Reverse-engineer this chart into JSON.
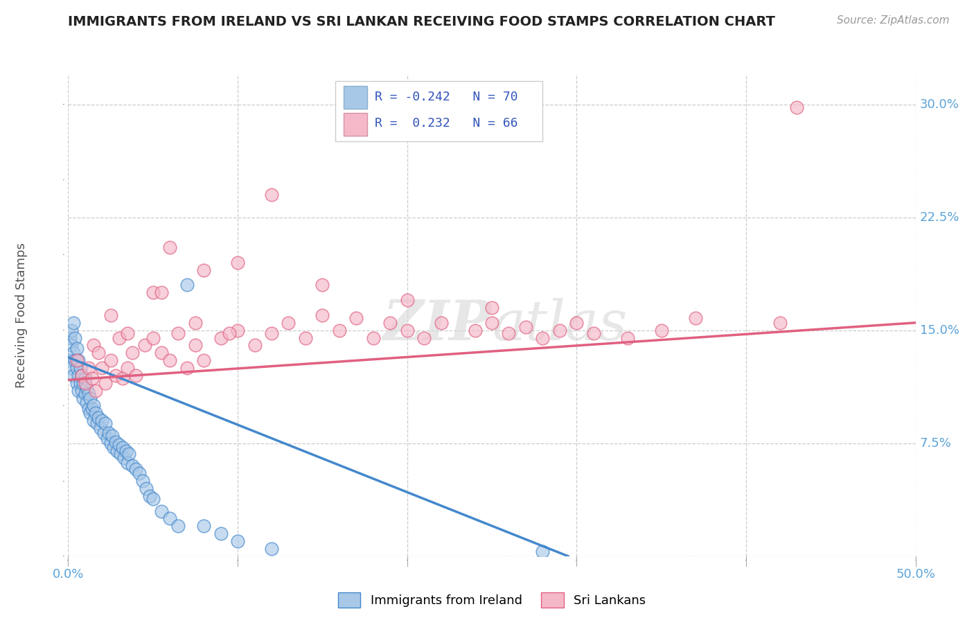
{
  "title": "IMMIGRANTS FROM IRELAND VS SRI LANKAN RECEIVING FOOD STAMPS CORRELATION CHART",
  "source": "Source: ZipAtlas.com",
  "ylabel": "Receiving Food Stamps",
  "xlim": [
    0.0,
    0.5
  ],
  "ylim": [
    0.0,
    0.32
  ],
  "x_ticks": [
    0.0,
    0.1,
    0.2,
    0.3,
    0.4,
    0.5
  ],
  "x_tick_labels": [
    "0.0%",
    "",
    "",
    "",
    "",
    "50.0%"
  ],
  "y_ticks": [
    0.0,
    0.075,
    0.15,
    0.225,
    0.3
  ],
  "y_tick_labels_right": [
    "",
    "7.5%",
    "15.0%",
    "22.5%",
    "30.0%"
  ],
  "color_ireland": "#a8c8e8",
  "color_srilanka": "#f4b8c8",
  "color_ireland_line": "#4488cc",
  "color_srilanka_line": "#e06080",
  "watermark": "ZIPatlas",
  "ireland_x": [
    0.001,
    0.001,
    0.002,
    0.002,
    0.002,
    0.003,
    0.003,
    0.003,
    0.004,
    0.004,
    0.005,
    0.005,
    0.005,
    0.006,
    0.006,
    0.006,
    0.007,
    0.007,
    0.008,
    0.008,
    0.009,
    0.009,
    0.01,
    0.01,
    0.011,
    0.011,
    0.012,
    0.012,
    0.013,
    0.013,
    0.014,
    0.015,
    0.015,
    0.016,
    0.017,
    0.018,
    0.019,
    0.02,
    0.021,
    0.022,
    0.023,
    0.024,
    0.025,
    0.026,
    0.027,
    0.028,
    0.029,
    0.03,
    0.031,
    0.032,
    0.033,
    0.034,
    0.035,
    0.036,
    0.038,
    0.04,
    0.042,
    0.044,
    0.046,
    0.048,
    0.05,
    0.055,
    0.06,
    0.065,
    0.07,
    0.08,
    0.09,
    0.1,
    0.12,
    0.28
  ],
  "ireland_y": [
    0.13,
    0.145,
    0.15,
    0.125,
    0.14,
    0.135,
    0.12,
    0.155,
    0.13,
    0.145,
    0.125,
    0.138,
    0.115,
    0.13,
    0.12,
    0.11,
    0.125,
    0.115,
    0.12,
    0.11,
    0.115,
    0.105,
    0.118,
    0.108,
    0.112,
    0.102,
    0.108,
    0.098,
    0.105,
    0.095,
    0.098,
    0.1,
    0.09,
    0.095,
    0.088,
    0.092,
    0.085,
    0.09,
    0.082,
    0.088,
    0.078,
    0.082,
    0.075,
    0.08,
    0.072,
    0.076,
    0.07,
    0.074,
    0.068,
    0.072,
    0.065,
    0.07,
    0.062,
    0.068,
    0.06,
    0.058,
    0.055,
    0.05,
    0.045,
    0.04,
    0.038,
    0.03,
    0.025,
    0.02,
    0.18,
    0.02,
    0.015,
    0.01,
    0.005,
    0.003
  ],
  "srilanka_x": [
    0.005,
    0.008,
    0.01,
    0.012,
    0.014,
    0.015,
    0.016,
    0.018,
    0.02,
    0.022,
    0.025,
    0.028,
    0.03,
    0.032,
    0.035,
    0.038,
    0.04,
    0.045,
    0.05,
    0.055,
    0.06,
    0.065,
    0.07,
    0.075,
    0.08,
    0.09,
    0.1,
    0.11,
    0.12,
    0.13,
    0.14,
    0.15,
    0.16,
    0.17,
    0.18,
    0.19,
    0.2,
    0.21,
    0.22,
    0.24,
    0.25,
    0.26,
    0.27,
    0.28,
    0.29,
    0.31,
    0.33,
    0.35,
    0.37,
    0.42,
    0.43,
    0.06,
    0.12,
    0.05,
    0.08,
    0.1,
    0.15,
    0.2,
    0.25,
    0.3,
    0.025,
    0.035,
    0.055,
    0.075,
    0.095
  ],
  "srilanka_y": [
    0.13,
    0.12,
    0.115,
    0.125,
    0.118,
    0.14,
    0.11,
    0.135,
    0.125,
    0.115,
    0.13,
    0.12,
    0.145,
    0.118,
    0.125,
    0.135,
    0.12,
    0.14,
    0.145,
    0.135,
    0.13,
    0.148,
    0.125,
    0.14,
    0.13,
    0.145,
    0.15,
    0.14,
    0.148,
    0.155,
    0.145,
    0.16,
    0.15,
    0.158,
    0.145,
    0.155,
    0.15,
    0.145,
    0.155,
    0.15,
    0.155,
    0.148,
    0.152,
    0.145,
    0.15,
    0.148,
    0.145,
    0.15,
    0.158,
    0.155,
    0.298,
    0.205,
    0.24,
    0.175,
    0.19,
    0.195,
    0.18,
    0.17,
    0.165,
    0.155,
    0.16,
    0.148,
    0.175,
    0.155,
    0.148
  ],
  "ire_line_x0": 0.0,
  "ire_line_y0": 0.132,
  "ire_line_x1": 0.295,
  "ire_line_y1": 0.0,
  "srl_line_x0": 0.0,
  "srl_line_y0": 0.117,
  "srl_line_x1": 0.5,
  "srl_line_y1": 0.155
}
